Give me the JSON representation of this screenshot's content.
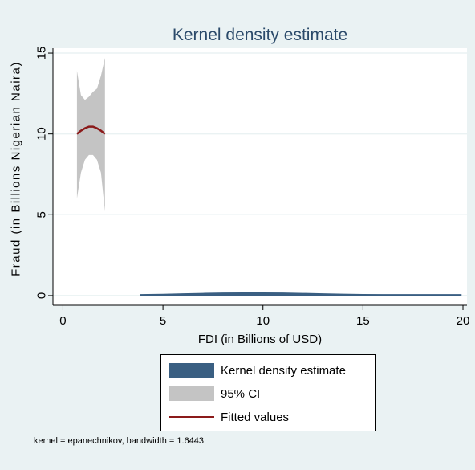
{
  "colors": {
    "outer_bg": "#eaf2f3",
    "plot_bg": "#ffffff",
    "kde_fill": "#3a5f82",
    "ci_fill": "#c4c4c4",
    "fitted_line": "#8b1a1a",
    "grid": "#eaf2f3"
  },
  "chart_data": {
    "type": "area",
    "title": "Kernel density estimate",
    "xlabel": "FDI (in Billions of USD)",
    "ylabel": "Fraud (in Billions Nigerian Naira)",
    "xlim": [
      -0.5,
      20.2
    ],
    "ylim": [
      -0.6,
      15.3
    ],
    "x_ticks": [
      0,
      5,
      10,
      15,
      20
    ],
    "y_ticks": [
      0,
      5,
      10,
      15
    ],
    "grid": true,
    "legend_position": "bottom",
    "series": [
      {
        "name": "Kernel density estimate",
        "kind": "area",
        "x": [
          3.9,
          5,
          6,
          7,
          8,
          9,
          10,
          11,
          12,
          13,
          14,
          15,
          16,
          17,
          18,
          19,
          19.9
        ],
        "y": [
          0.0,
          0.02,
          0.05,
          0.08,
          0.1,
          0.11,
          0.11,
          0.1,
          0.08,
          0.05,
          0.03,
          0.01,
          0.0,
          0.0,
          0.0,
          0.0,
          0.0
        ]
      },
      {
        "name": "95% CI",
        "kind": "band",
        "x": [
          0.7,
          0.9,
          1.1,
          1.3,
          1.5,
          1.7,
          1.9,
          2.1
        ],
        "lower": [
          6.0,
          7.6,
          8.4,
          8.7,
          8.7,
          8.4,
          7.6,
          5.2
        ],
        "upper": [
          13.9,
          12.4,
          12.1,
          12.3,
          12.6,
          12.8,
          13.6,
          14.7
        ]
      },
      {
        "name": "Fitted values",
        "kind": "line",
        "x": [
          0.7,
          0.9,
          1.1,
          1.3,
          1.5,
          1.7,
          1.9,
          2.1
        ],
        "y": [
          10.0,
          10.2,
          10.35,
          10.45,
          10.45,
          10.35,
          10.2,
          10.0
        ]
      }
    ],
    "note": "kernel = epanechnikov, bandwidth = 1.6443"
  }
}
